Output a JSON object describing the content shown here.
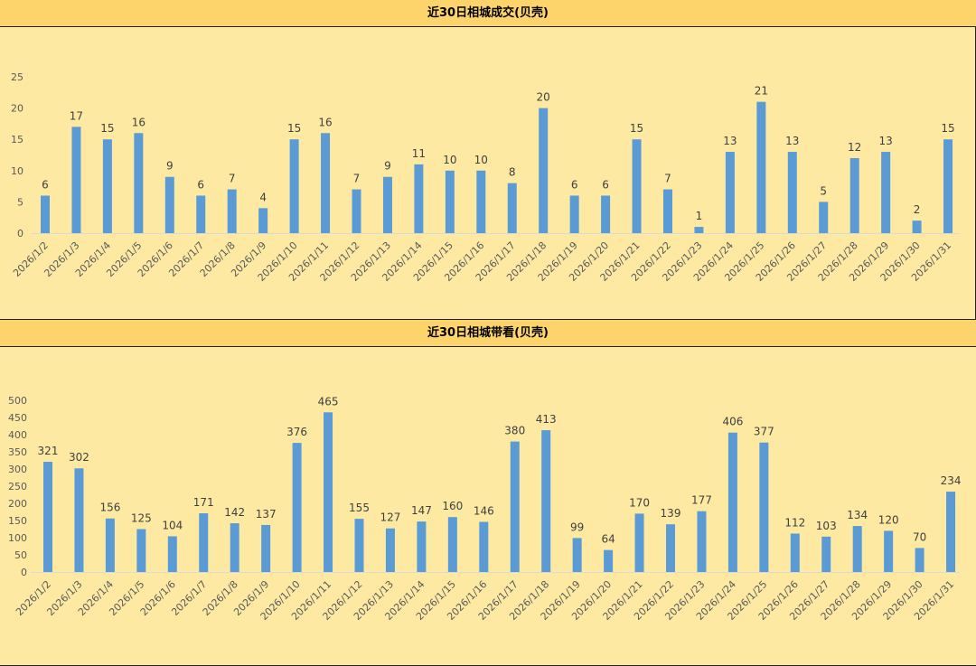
{
  "colors": {
    "background": "#fde9a2",
    "title_bar": "#fcd46b",
    "bar": "#5b9bd5"
  },
  "chart_data": [
    {
      "type": "bar",
      "title": "近30日相城成交(贝壳)",
      "xlabel": "",
      "ylabel": "",
      "ylim": [
        0,
        25
      ],
      "yticks": [
        0,
        5,
        10,
        15,
        20,
        25
      ],
      "grid": false,
      "categories": [
        "2026/1/2",
        "2026/1/3",
        "2026/1/4",
        "2026/1/5",
        "2026/1/6",
        "2026/1/7",
        "2026/1/8",
        "2026/1/9",
        "2026/1/10",
        "2026/1/11",
        "2026/1/12",
        "2026/1/13",
        "2026/1/14",
        "2026/1/15",
        "2026/1/16",
        "2026/1/17",
        "2026/1/18",
        "2026/1/19",
        "2026/1/20",
        "2026/1/21",
        "2026/1/22",
        "2026/1/23",
        "2026/1/24",
        "2026/1/25",
        "2026/1/26",
        "2026/1/27",
        "2026/1/28",
        "2026/1/29",
        "2026/1/30",
        "2026/1/31"
      ],
      "values": [
        6,
        17,
        15,
        16,
        9,
        6,
        7,
        4,
        15,
        16,
        7,
        9,
        11,
        10,
        10,
        8,
        20,
        6,
        6,
        15,
        7,
        1,
        13,
        21,
        13,
        5,
        12,
        13,
        2,
        15
      ]
    },
    {
      "type": "bar",
      "title": "近30日相城带看(贝壳)",
      "xlabel": "",
      "ylabel": "",
      "ylim": [
        0,
        500
      ],
      "yticks": [
        0,
        50,
        100,
        150,
        200,
        250,
        300,
        350,
        400,
        450,
        500
      ],
      "grid": false,
      "categories": [
        "2026/1/2",
        "2026/1/3",
        "2026/1/4",
        "2026/1/5",
        "2026/1/6",
        "2026/1/7",
        "2026/1/8",
        "2026/1/9",
        "2026/1/10",
        "2026/1/11",
        "2026/1/12",
        "2026/1/13",
        "2026/1/14",
        "2026/1/15",
        "2026/1/16",
        "2026/1/17",
        "2026/1/18",
        "2026/1/19",
        "2026/1/20",
        "2026/1/21",
        "2026/1/22",
        "2026/1/23",
        "2026/1/24",
        "2026/1/25",
        "2026/1/26",
        "2026/1/27",
        "2026/1/28",
        "2026/1/29",
        "2026/1/30",
        "2026/1/31"
      ],
      "values": [
        321,
        302,
        156,
        125,
        104,
        171,
        142,
        137,
        376,
        465,
        155,
        127,
        147,
        160,
        146,
        380,
        413,
        99,
        64,
        170,
        139,
        177,
        406,
        377,
        112,
        103,
        134,
        120,
        70,
        234
      ]
    }
  ]
}
